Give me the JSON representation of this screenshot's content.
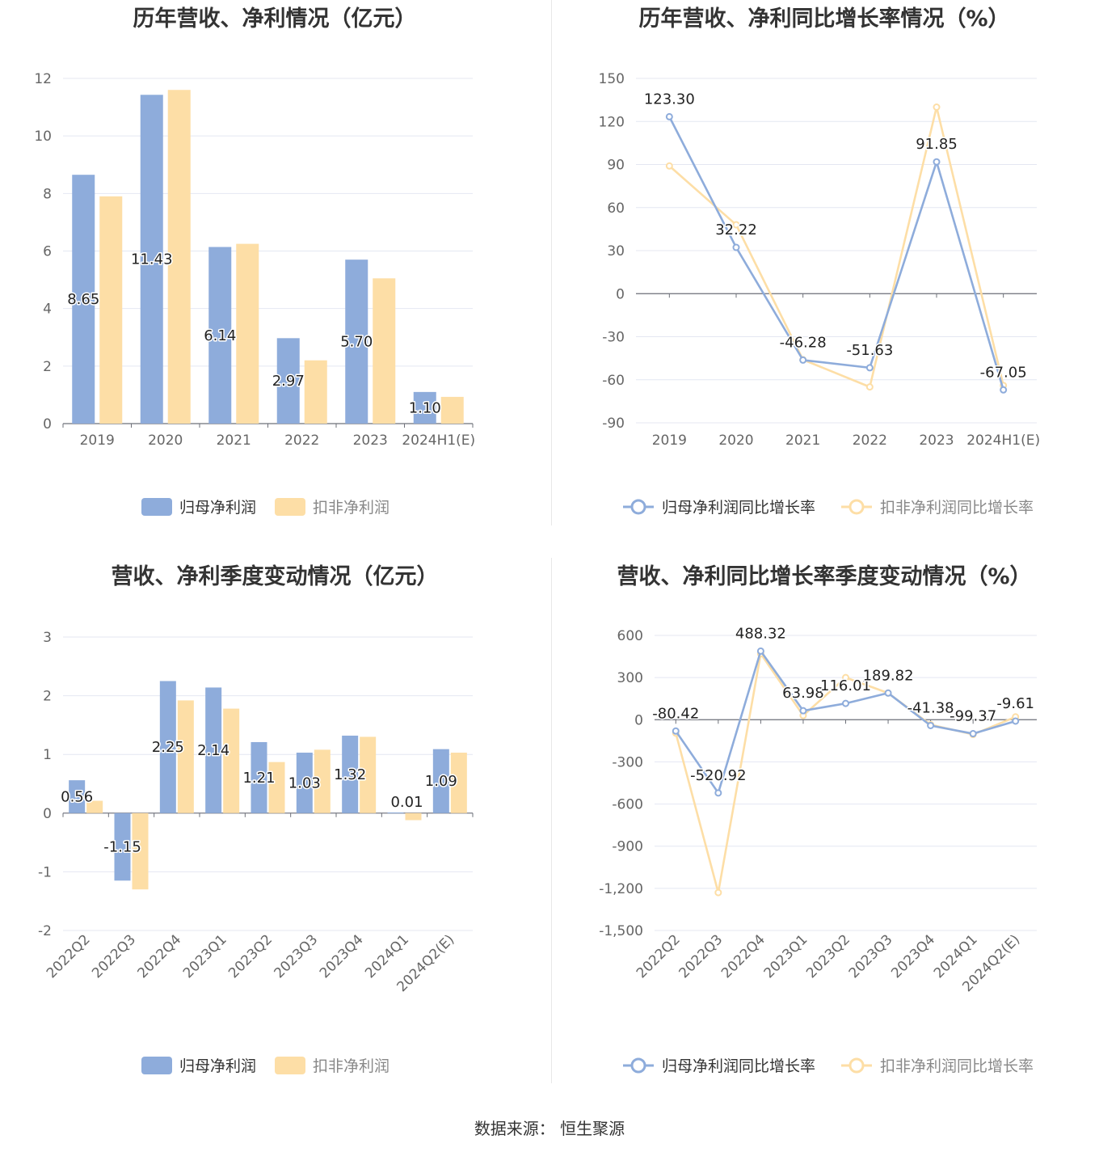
{
  "charts": [
    {
      "title": "历年营收、净利情况（亿元）",
      "type": "bar",
      "categories": [
        "2019",
        "2020",
        "2021",
        "2022",
        "2023",
        "2024H1(E)"
      ],
      "ylim": [
        0,
        12
      ],
      "yticks": [
        0,
        2,
        4,
        6,
        8,
        10,
        12
      ],
      "series": [
        {
          "name": "归母净利润",
          "color": "#8eacdb",
          "values": [
            8.65,
            11.43,
            6.14,
            2.97,
            5.7,
            1.1
          ]
        },
        {
          "name": "扣非净利润",
          "color": "#fddea6",
          "values": [
            7.9,
            11.6,
            6.25,
            2.2,
            5.05,
            0.93
          ]
        }
      ],
      "data_labels": [
        "8.65",
        "11.43",
        "6.14",
        "2.97",
        "5.70",
        "1.10"
      ],
      "legend": "bottom"
    },
    {
      "title": "历年营收、净利同比增长率情况（%）",
      "type": "line",
      "categories": [
        "2019",
        "2020",
        "2021",
        "2022",
        "2023",
        "2024H1(E)"
      ],
      "ylim": [
        -90,
        150
      ],
      "yticks": [
        -90,
        -60,
        -30,
        0,
        30,
        60,
        90,
        120,
        150
      ],
      "series": [
        {
          "name": "归母净利润同比增长率",
          "color": "#8eacdb",
          "values": [
            123.3,
            32.22,
            -46.28,
            -51.63,
            91.85,
            -67.05
          ]
        },
        {
          "name": "扣非净利润同比增长率",
          "color": "#fddea6",
          "values": [
            89.0,
            48.0,
            -46.0,
            -65.0,
            130.0,
            -64.0
          ]
        }
      ],
      "data_labels": [
        "123.30",
        "32.22",
        "-46.28",
        "-51.63",
        "91.85",
        "-67.05"
      ],
      "legend": "bottom"
    },
    {
      "title": "营收、净利季度变动情况（亿元）",
      "type": "bar",
      "categories": [
        "2022Q2",
        "2022Q3",
        "2022Q4",
        "2023Q1",
        "2023Q2",
        "2023Q3",
        "2023Q4",
        "2024Q1",
        "2024Q2(E)"
      ],
      "ylim": [
        -2,
        3
      ],
      "yticks": [
        -2,
        -1,
        0,
        1,
        2,
        3
      ],
      "series": [
        {
          "name": "归母净利润",
          "color": "#8eacdb",
          "values": [
            0.56,
            -1.15,
            2.25,
            2.14,
            1.21,
            1.03,
            1.32,
            0.01,
            1.09
          ]
        },
        {
          "name": "扣非净利润",
          "color": "#fddea6",
          "values": [
            0.21,
            -1.3,
            1.92,
            1.78,
            0.87,
            1.08,
            1.3,
            -0.12,
            1.03
          ]
        }
      ],
      "data_labels": [
        "0.56",
        "-1.15",
        "2.25",
        "2.14",
        "1.21",
        "1.03",
        "1.32",
        "0.01",
        "1.09"
      ],
      "legend": "bottom"
    },
    {
      "title": "营收、净利同比增长率季度变动情况（%）",
      "type": "line",
      "categories": [
        "2022Q2",
        "2022Q3",
        "2022Q4",
        "2023Q1",
        "2023Q2",
        "2023Q3",
        "2023Q4",
        "2024Q1",
        "2024Q2(E)"
      ],
      "ylim": [
        -1500,
        600
      ],
      "yticks": [
        -1500,
        -1200,
        -900,
        -600,
        -300,
        0,
        300,
        600
      ],
      "ytick_labels": [
        "-1,500",
        "-1,200",
        "-900",
        "-600",
        "-300",
        "0",
        "300",
        "600"
      ],
      "series": [
        {
          "name": "归母净利润同比增长率",
          "color": "#8eacdb",
          "values": [
            -80.42,
            -520.92,
            488.32,
            63.98,
            116.01,
            189.82,
            -41.38,
            -99.37,
            -9.61
          ]
        },
        {
          "name": "扣非净利润同比增长率",
          "color": "#fddea6",
          "values": [
            -95,
            -1230,
            470,
            30,
            300,
            190,
            -35,
            -105,
            20
          ]
        }
      ],
      "data_labels": [
        "-80.42",
        "-520.92",
        "488.32",
        "63.98",
        "116.01",
        "189.82",
        "-41.38",
        "-99.37",
        "-9.61"
      ],
      "legend": "bottom"
    }
  ],
  "source": "数据来源：  恒生聚源"
}
